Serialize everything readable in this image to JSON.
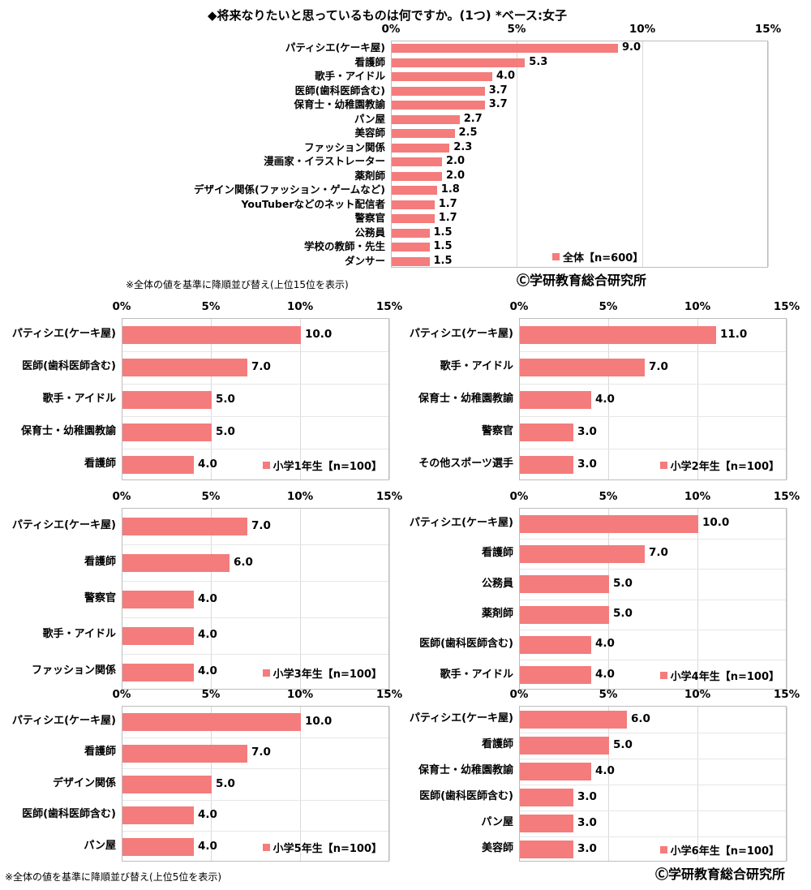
{
  "page": {
    "title": "◆将来なりたいと思っているものは何ですか。(1つ) *ベース:女子",
    "sort_note_top": "※全体の値を基準に降順並び替え(上位15位を表示)",
    "sort_note_bottom": "※全体の値を基準に降順並び替え(上位5位を表示)",
    "credit_top": "Ⓒ学研教育総合研究所",
    "credit_bottom": "Ⓒ学研教育総合研究所"
  },
  "colors": {
    "bar": "#F47C7C",
    "grid": "#D9D9D9",
    "row_grid": "#E6E6E6",
    "border": "#BDBDBD"
  },
  "axis": {
    "ticks": [
      "0%",
      "5%",
      "10%",
      "15%"
    ],
    "max": 15
  },
  "chart_data": [
    {
      "id": "overall",
      "type": "bar",
      "orientation": "horizontal",
      "legend": "全体【n=600】",
      "xlim": [
        0,
        15
      ],
      "categories": [
        "パティシエ(ケーキ屋)",
        "看護師",
        "歌手・アイドル",
        "医師(歯科医師含む)",
        "保育士・幼稚園教諭",
        "パン屋",
        "美容師",
        "ファッション関係",
        "漫画家・イラストレーター",
        "薬剤師",
        "デザイン関係(ファッション・ゲームなど)",
        "YouTuberなどのネット配信者",
        "警察官",
        "公務員",
        "学校の教師・先生",
        "ダンサー"
      ],
      "values": [
        9.0,
        5.3,
        4.0,
        3.7,
        3.7,
        2.7,
        2.5,
        2.3,
        2.0,
        2.0,
        1.8,
        1.7,
        1.7,
        1.5,
        1.5,
        1.5
      ]
    },
    {
      "id": "grade1",
      "type": "bar",
      "orientation": "horizontal",
      "legend": "小学1年生【n=100】",
      "xlim": [
        0,
        15
      ],
      "categories": [
        "パティシエ(ケーキ屋)",
        "医師(歯科医師含む)",
        "歌手・アイドル",
        "保育士・幼稚園教諭",
        "看護師"
      ],
      "values": [
        10.0,
        7.0,
        5.0,
        5.0,
        4.0
      ]
    },
    {
      "id": "grade2",
      "type": "bar",
      "orientation": "horizontal",
      "legend": "小学2年生【n=100】",
      "xlim": [
        0,
        15
      ],
      "categories": [
        "パティシエ(ケーキ屋)",
        "歌手・アイドル",
        "保育士・幼稚園教諭",
        "警察官",
        "その他スポーツ選手"
      ],
      "values": [
        11.0,
        7.0,
        4.0,
        3.0,
        3.0
      ]
    },
    {
      "id": "grade3",
      "type": "bar",
      "orientation": "horizontal",
      "legend": "小学3年生【n=100】",
      "xlim": [
        0,
        15
      ],
      "categories": [
        "パティシエ(ケーキ屋)",
        "看護師",
        "警察官",
        "歌手・アイドル",
        "ファッション関係"
      ],
      "values": [
        7.0,
        6.0,
        4.0,
        4.0,
        4.0
      ]
    },
    {
      "id": "grade4",
      "type": "bar",
      "orientation": "horizontal",
      "legend": "小学4年生【n=100】",
      "xlim": [
        0,
        15
      ],
      "categories": [
        "パティシエ(ケーキ屋)",
        "看護師",
        "公務員",
        "薬剤師",
        "医師(歯科医師含む)",
        "歌手・アイドル"
      ],
      "values": [
        10.0,
        7.0,
        5.0,
        5.0,
        4.0,
        4.0
      ]
    },
    {
      "id": "grade5",
      "type": "bar",
      "orientation": "horizontal",
      "legend": "小学5年生【n=100】",
      "xlim": [
        0,
        15
      ],
      "categories": [
        "パティシエ(ケーキ屋)",
        "看護師",
        "デザイン関係",
        "医師(歯科医師含む)",
        "パン屋"
      ],
      "values": [
        10.0,
        7.0,
        5.0,
        4.0,
        4.0
      ]
    },
    {
      "id": "grade6",
      "type": "bar",
      "orientation": "horizontal",
      "legend": "小学6年生【n=100】",
      "xlim": [
        0,
        15
      ],
      "categories": [
        "パティシエ(ケーキ屋)",
        "看護師",
        "保育士・幼稚園教諭",
        "医師(歯科医師含む)",
        "パン屋",
        "美容師"
      ],
      "values": [
        6.0,
        5.0,
        4.0,
        3.0,
        3.0,
        3.0
      ]
    }
  ]
}
